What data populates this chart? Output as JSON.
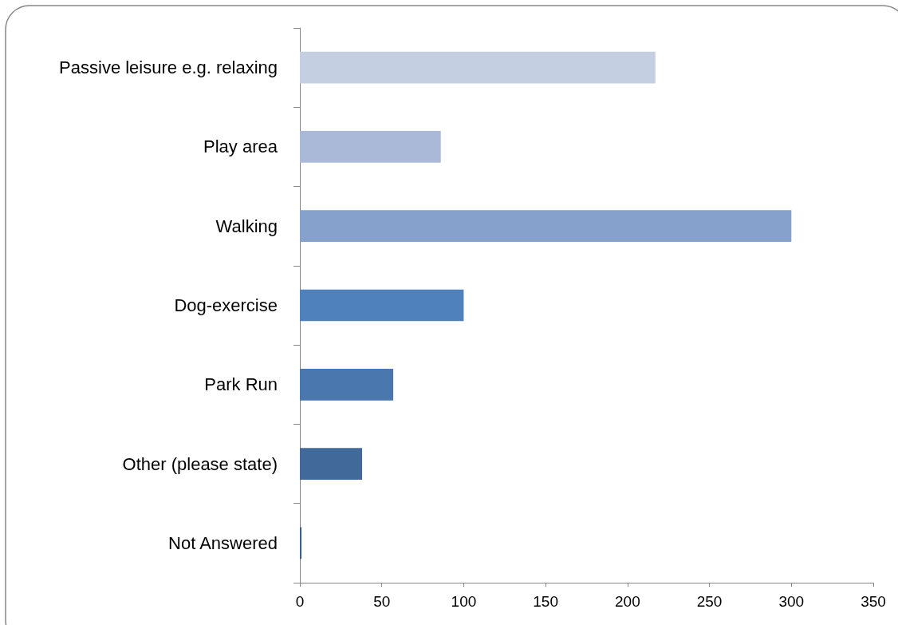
{
  "chart_data": {
    "type": "bar",
    "orientation": "horizontal",
    "categories": [
      "Passive leisure e.g. relaxing",
      "Play area",
      "Walking",
      "Dog-exercise",
      "Park Run",
      "Other (please state)",
      "Not Answered"
    ],
    "values": [
      217,
      86,
      300,
      100,
      57,
      38,
      1
    ],
    "colors": [
      "#c4cfe2",
      "#aab9d8",
      "#86a1cc",
      "#4f81bd",
      "#4a77ad",
      "#416a9b",
      "#3a5f8e"
    ],
    "xlim": [
      0,
      350
    ],
    "xticks": [
      0,
      50,
      100,
      150,
      200,
      250,
      300,
      350
    ]
  }
}
